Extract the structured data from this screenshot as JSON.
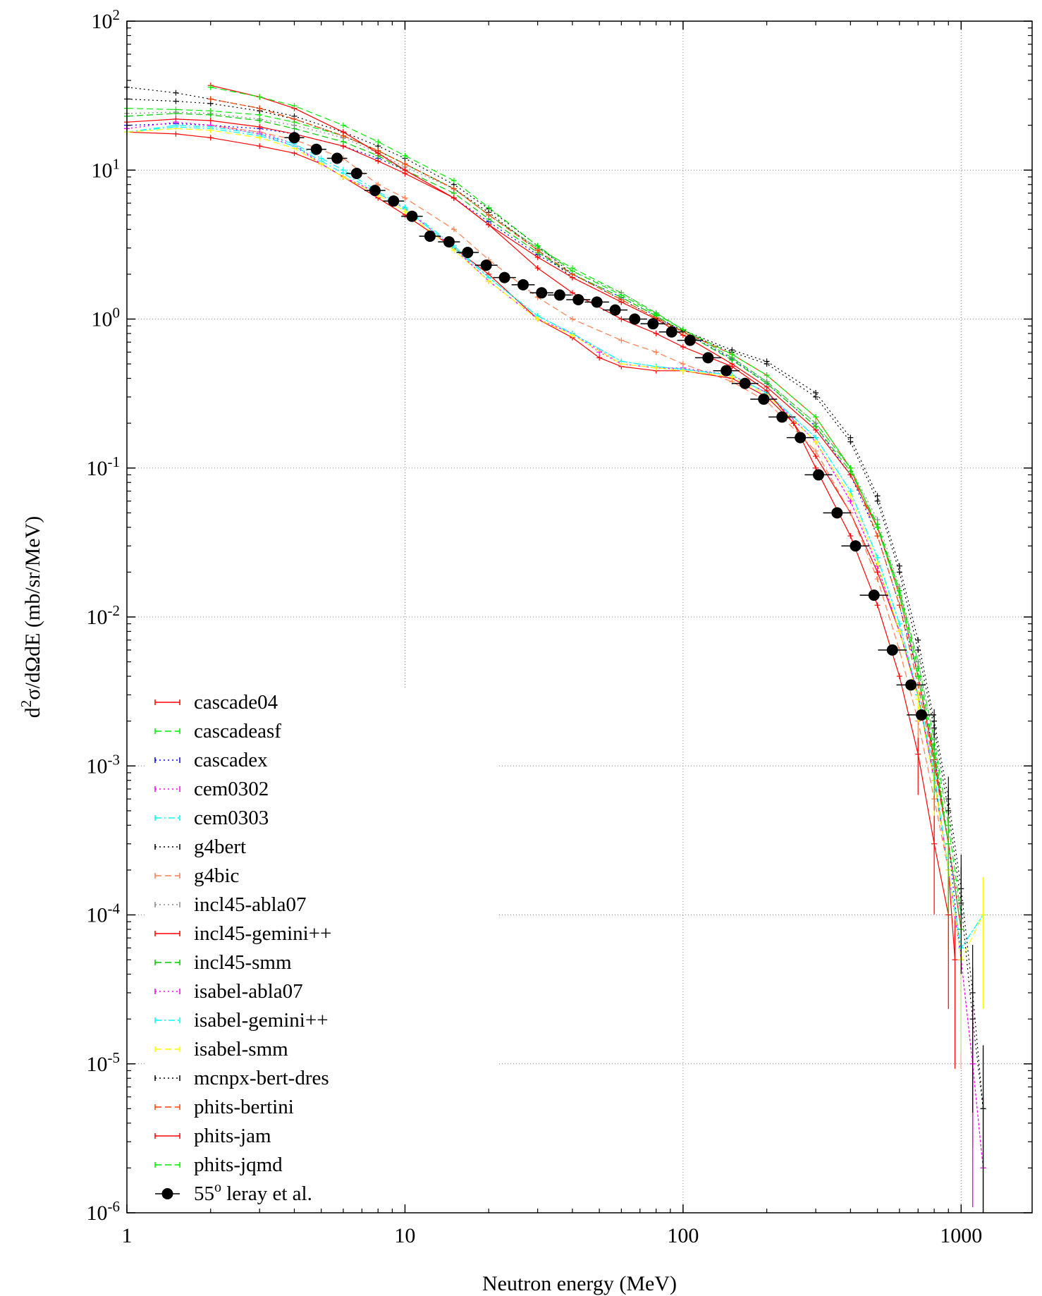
{
  "chart_data": {
    "type": "line",
    "title": "",
    "xlabel": "Neutron energy (MeV)",
    "ylabel_parts": {
      "d": "d",
      "sup": "2",
      "rest": "σ/dΩdE (mb/sr/MeV)"
    },
    "x_scale": "log",
    "y_scale": "log",
    "xlim": [
      1,
      1800
    ],
    "ylim": [
      1e-06,
      100
    ],
    "grid": true,
    "legend_position": "bottom-left",
    "x_ticks": [
      {
        "value": 1,
        "label": "1"
      },
      {
        "value": 10,
        "label": "10"
      },
      {
        "value": 100,
        "label": "100"
      },
      {
        "value": 1000,
        "label": "1000"
      }
    ],
    "y_ticks": [
      {
        "value": 100,
        "base": "10",
        "exp": "2"
      },
      {
        "value": 10,
        "base": "10",
        "exp": "1"
      },
      {
        "value": 1,
        "base": "10",
        "exp": "0"
      },
      {
        "value": 0.1,
        "base": "10",
        "exp": "-1"
      },
      {
        "value": 0.01,
        "base": "10",
        "exp": "-2"
      },
      {
        "value": 0.001,
        "base": "10",
        "exp": "-3"
      },
      {
        "value": 0.0001,
        "base": "10",
        "exp": "-4"
      },
      {
        "value": 1e-05,
        "base": "10",
        "exp": "-5"
      },
      {
        "value": 1e-06,
        "base": "10",
        "exp": "-6"
      }
    ],
    "series": [
      {
        "name": "cascade04",
        "color": "#ff0000",
        "dash": "solid",
        "x": [
          1,
          1.5,
          2,
          3,
          4,
          5,
          6,
          8,
          10,
          15,
          20,
          30,
          40,
          50,
          60,
          80,
          100,
          150,
          200,
          250,
          300,
          400,
          500,
          600,
          700,
          800,
          900,
          950
        ],
        "y": [
          18,
          17.5,
          16.5,
          14.5,
          13,
          11,
          9,
          6.5,
          5,
          3,
          2,
          1,
          0.75,
          0.55,
          0.48,
          0.45,
          0.45,
          0.4,
          0.3,
          0.2,
          0.12,
          0.05,
          0.02,
          0.008,
          0.003,
          0.0008,
          0.0002,
          5e-05
        ]
      },
      {
        "name": "cascadeasf",
        "color": "#00ee00",
        "dash": "dash",
        "x": [
          1,
          1.5,
          2,
          3,
          4,
          6,
          8,
          10,
          15,
          20,
          30,
          40,
          60,
          80,
          100,
          150,
          200,
          300,
          400,
          500,
          600,
          700,
          800,
          900,
          1000
        ],
        "y": [
          26,
          25.5,
          25,
          23.5,
          21,
          17,
          13.5,
          11,
          7.5,
          5,
          3,
          2.2,
          1.5,
          1.1,
          0.85,
          0.55,
          0.38,
          0.2,
          0.1,
          0.04,
          0.015,
          0.005,
          0.0015,
          0.0004,
          0.0001
        ]
      },
      {
        "name": "cascadex",
        "color": "#0000ff",
        "dash": "dot",
        "x": [
          1,
          1.5,
          2,
          3,
          4,
          6,
          8,
          10,
          15,
          20,
          30,
          40,
          60,
          80,
          100,
          150,
          200,
          300,
          400,
          500,
          600,
          700,
          800,
          900,
          1000
        ],
        "y": [
          20,
          20.5,
          20,
          19,
          17.5,
          14.5,
          12,
          10,
          6.5,
          4.5,
          2.7,
          2,
          1.4,
          1.05,
          0.82,
          0.54,
          0.37,
          0.19,
          0.09,
          0.035,
          0.012,
          0.004,
          0.0012,
          0.0003,
          5e-05
        ]
      },
      {
        "name": "cem0302",
        "color": "#ff00ff",
        "dash": "dot",
        "x": [
          1,
          1.5,
          2,
          3,
          4,
          5,
          6,
          8,
          10,
          15,
          20,
          30,
          40,
          50,
          60,
          80,
          100,
          150,
          200,
          300,
          400,
          500,
          600,
          700,
          800,
          900,
          1000,
          1100,
          1200
        ],
        "y": [
          19,
          21,
          20,
          18,
          15,
          11,
          9,
          7,
          5.5,
          3,
          1.8,
          1,
          0.8,
          0.6,
          0.5,
          0.47,
          0.47,
          0.42,
          0.32,
          0.15,
          0.06,
          0.022,
          0.008,
          0.003,
          0.0008,
          0.0002,
          5e-05,
          1e-05,
          2e-06
        ]
      },
      {
        "name": "cem0303",
        "color": "#00ffff",
        "dash": "dashdot",
        "x": [
          1,
          1.5,
          2,
          3,
          4,
          5,
          6,
          8,
          10,
          15,
          20,
          30,
          40,
          60,
          80,
          100,
          150,
          200,
          300,
          400,
          500,
          600,
          700,
          800,
          900,
          1000,
          1200
        ],
        "y": [
          18,
          20,
          19.5,
          17.5,
          15,
          12,
          10,
          7.2,
          5.6,
          3.1,
          1.9,
          1.05,
          0.8,
          0.52,
          0.48,
          0.46,
          0.42,
          0.32,
          0.16,
          0.07,
          0.025,
          0.009,
          0.003,
          0.0009,
          0.0002,
          6e-05,
          0.0001
        ]
      },
      {
        "name": "g4bert",
        "color": "#000000",
        "dash": "dot",
        "x": [
          1,
          1.5,
          2,
          3,
          4,
          6,
          8,
          10,
          15,
          20,
          30,
          40,
          60,
          80,
          100,
          150,
          200,
          300,
          400,
          500,
          600,
          700,
          800,
          900,
          1000,
          1100,
          1200
        ],
        "y": [
          30,
          29,
          28,
          25,
          22,
          17,
          13.5,
          11,
          7.5,
          5.2,
          2.9,
          1.9,
          1.3,
          1.0,
          0.82,
          0.6,
          0.5,
          0.3,
          0.15,
          0.06,
          0.02,
          0.006,
          0.0018,
          0.0005,
          0.00012,
          2e-05,
          5e-06
        ]
      },
      {
        "name": "g4bic",
        "color": "#ff7f50",
        "dash": "dash",
        "x": [
          2,
          3,
          4,
          6,
          8,
          10,
          15,
          20,
          30,
          40,
          60,
          80,
          100,
          150,
          200,
          300,
          400,
          500,
          600,
          700,
          800,
          900
        ],
        "y": [
          20,
          18,
          16,
          12,
          8,
          6.5,
          4,
          2.5,
          1.4,
          1.0,
          0.72,
          0.6,
          0.5,
          0.38,
          0.28,
          0.13,
          0.05,
          0.018,
          0.006,
          0.002,
          0.0006,
          0.0002
        ]
      },
      {
        "name": "incl45-abla07",
        "color": "#888888",
        "dash": "dot",
        "x": [
          1,
          1.5,
          2,
          3,
          4,
          6,
          8,
          10,
          15,
          20,
          30,
          40,
          60,
          80,
          100,
          150,
          200,
          300,
          400,
          500,
          600,
          700,
          800,
          900,
          1000
        ],
        "y": [
          24,
          24.5,
          24,
          22,
          20,
          16.5,
          13,
          10.5,
          7.5,
          5,
          3,
          2.1,
          1.5,
          1.1,
          0.85,
          0.55,
          0.38,
          0.2,
          0.1,
          0.045,
          0.016,
          0.005,
          0.0015,
          0.0003,
          0.0001
        ]
      },
      {
        "name": "incl45-gemini++",
        "color": "#ff0000",
        "dash": "solid",
        "x": [
          1,
          1.5,
          2,
          3,
          4,
          6,
          8,
          10,
          15,
          20,
          30,
          40,
          60,
          80,
          100,
          150,
          200,
          300,
          400,
          500,
          600,
          700,
          800,
          900,
          1000
        ],
        "y": [
          21,
          22,
          21.5,
          19.5,
          17.5,
          14.5,
          11.5,
          9.5,
          6.5,
          4.3,
          2.6,
          1.9,
          1.3,
          1.0,
          0.78,
          0.5,
          0.35,
          0.18,
          0.09,
          0.04,
          0.014,
          0.004,
          0.0011,
          0.0003,
          8e-05
        ]
      },
      {
        "name": "incl45-smm",
        "color": "#00cc00",
        "dash": "dash",
        "x": [
          1,
          1.5,
          2,
          3,
          4,
          6,
          8,
          10,
          15,
          20,
          30,
          40,
          60,
          80,
          100,
          150,
          200,
          300,
          400,
          500,
          600,
          700,
          800,
          900,
          1000
        ],
        "y": [
          23,
          24,
          23.5,
          21.5,
          19,
          15.5,
          12.5,
          10,
          7,
          4.7,
          2.8,
          2.0,
          1.4,
          1.05,
          0.82,
          0.53,
          0.37,
          0.19,
          0.095,
          0.042,
          0.015,
          0.0045,
          0.0013,
          0.0003,
          8e-05
        ]
      },
      {
        "name": "isabel-abla07",
        "color": "#ff00ff",
        "dash": "dot",
        "x": [
          1,
          1.5,
          2,
          3,
          4,
          5,
          6,
          8,
          10,
          15,
          20,
          30,
          40,
          60,
          80,
          100,
          150,
          200,
          300,
          400,
          500,
          600,
          700,
          800,
          900,
          1000,
          1100,
          1200
        ],
        "y": [
          19,
          21,
          20,
          17.5,
          14.5,
          11,
          9,
          7,
          5.5,
          3,
          1.8,
          1,
          0.8,
          0.5,
          0.47,
          0.46,
          0.42,
          0.32,
          0.15,
          0.06,
          0.022,
          0.008,
          0.003,
          0.0008,
          0.0002,
          5e-05,
          1e-05,
          2e-06
        ]
      },
      {
        "name": "isabel-gemini++",
        "color": "#00ffff",
        "dash": "dashdot",
        "x": [
          1,
          1.5,
          2,
          3,
          4,
          5,
          6,
          8,
          10,
          15,
          20,
          30,
          40,
          60,
          80,
          100,
          150,
          200,
          300,
          400,
          500,
          600,
          700,
          800,
          900,
          1000,
          1200
        ],
        "y": [
          18,
          19.5,
          19,
          17,
          14.5,
          11.5,
          9.5,
          7,
          5.5,
          3,
          1.9,
          1.05,
          0.8,
          0.52,
          0.48,
          0.46,
          0.42,
          0.32,
          0.16,
          0.07,
          0.025,
          0.009,
          0.003,
          0.0009,
          0.0002,
          6e-05,
          0.0001
        ]
      },
      {
        "name": "isabel-smm",
        "color": "#ffff00",
        "dash": "dash",
        "x": [
          1,
          1.5,
          2,
          3,
          4,
          5,
          6,
          8,
          10,
          15,
          20,
          30,
          40,
          60,
          80,
          100,
          150,
          200,
          300,
          400,
          500,
          600,
          700,
          800,
          900,
          1000,
          1200
        ],
        "y": [
          18,
          19,
          18.5,
          16.5,
          14,
          11,
          9,
          6.8,
          5.3,
          2.9,
          1.8,
          1.0,
          0.78,
          0.5,
          0.47,
          0.45,
          0.41,
          0.31,
          0.15,
          0.065,
          0.023,
          0.008,
          0.0028,
          0.0008,
          0.0002,
          5e-05,
          0.0001
        ]
      },
      {
        "name": "mcnpx-bert-dres",
        "color": "#000000",
        "dash": "dot",
        "x": [
          1,
          1.5,
          2,
          3,
          4,
          6,
          8,
          10,
          15,
          20,
          30,
          40,
          60,
          80,
          100,
          150,
          200,
          300,
          400,
          500,
          600,
          700,
          800,
          900,
          1000,
          1100,
          1200
        ],
        "y": [
          36,
          33,
          30,
          26,
          23,
          18,
          14.5,
          12,
          8,
          5.5,
          3.1,
          2.0,
          1.35,
          1.02,
          0.84,
          0.62,
          0.52,
          0.32,
          0.16,
          0.065,
          0.022,
          0.007,
          0.002,
          0.0006,
          0.00015,
          3e-05,
          5e-06
        ]
      },
      {
        "name": "phits-bertini",
        "color": "#ff4500",
        "dash": "dash",
        "x": [
          2,
          3,
          4,
          6,
          8,
          10,
          15,
          20,
          30,
          40,
          60,
          80,
          100,
          150,
          200,
          300,
          400,
          500,
          600,
          700,
          800,
          900
        ],
        "y": [
          30,
          26,
          22,
          17,
          13.5,
          11,
          7.5,
          5,
          2.9,
          2.0,
          1.35,
          1.02,
          0.82,
          0.58,
          0.42,
          0.22,
          0.1,
          0.035,
          0.012,
          0.0035,
          0.001,
          0.0003
        ]
      },
      {
        "name": "phits-jam",
        "color": "#ff0000",
        "dash": "solid",
        "x": [
          2,
          3,
          4,
          6,
          8,
          10,
          15,
          20,
          30,
          40,
          60,
          80,
          100,
          150,
          200,
          250,
          300,
          400,
          500,
          600,
          700,
          800,
          900
        ],
        "y": [
          37,
          31,
          26,
          18,
          13,
          10,
          6.5,
          4.3,
          2.2,
          1.5,
          1.0,
          0.8,
          0.65,
          0.48,
          0.33,
          0.2,
          0.1,
          0.035,
          0.012,
          0.004,
          0.0012,
          0.0003,
          0.0001
        ]
      },
      {
        "name": "phits-jqmd",
        "color": "#00ee00",
        "dash": "dash",
        "x": [
          2,
          3,
          4,
          6,
          8,
          10,
          15,
          20,
          30,
          40,
          60,
          80,
          100,
          150,
          200,
          300,
          400,
          500,
          600,
          700,
          800,
          900
        ],
        "y": [
          36,
          31,
          27,
          20,
          15.5,
          12.5,
          8.5,
          5.6,
          3.1,
          2.1,
          1.45,
          1.08,
          0.85,
          0.58,
          0.42,
          0.22,
          0.1,
          0.04,
          0.014,
          0.004,
          0.0012,
          0.0003
        ]
      }
    ],
    "experiment": {
      "name_parts": {
        "num": "55",
        "sup": "o",
        "rest": " leray et al."
      },
      "color": "#000000",
      "x": [
        4,
        4.8,
        5.7,
        6.7,
        7.8,
        9.1,
        10.6,
        12.3,
        14.4,
        16.8,
        19.6,
        22.8,
        26.6,
        31,
        36,
        42,
        49,
        57,
        67,
        78,
        91,
        106,
        123,
        143,
        167,
        195,
        227,
        264,
        307,
        358,
        417,
        486,
        566,
        660,
        720
      ],
      "y": [
        16.5,
        13.8,
        12,
        9.5,
        7.3,
        6.2,
        4.9,
        3.6,
        3.3,
        2.8,
        2.3,
        1.9,
        1.7,
        1.5,
        1.45,
        1.35,
        1.3,
        1.15,
        1.0,
        0.93,
        0.82,
        0.72,
        0.55,
        0.45,
        0.37,
        0.29,
        0.22,
        0.16,
        0.09,
        0.05,
        0.03,
        0.014,
        0.006,
        0.0035,
        0.0022
      ]
    }
  }
}
